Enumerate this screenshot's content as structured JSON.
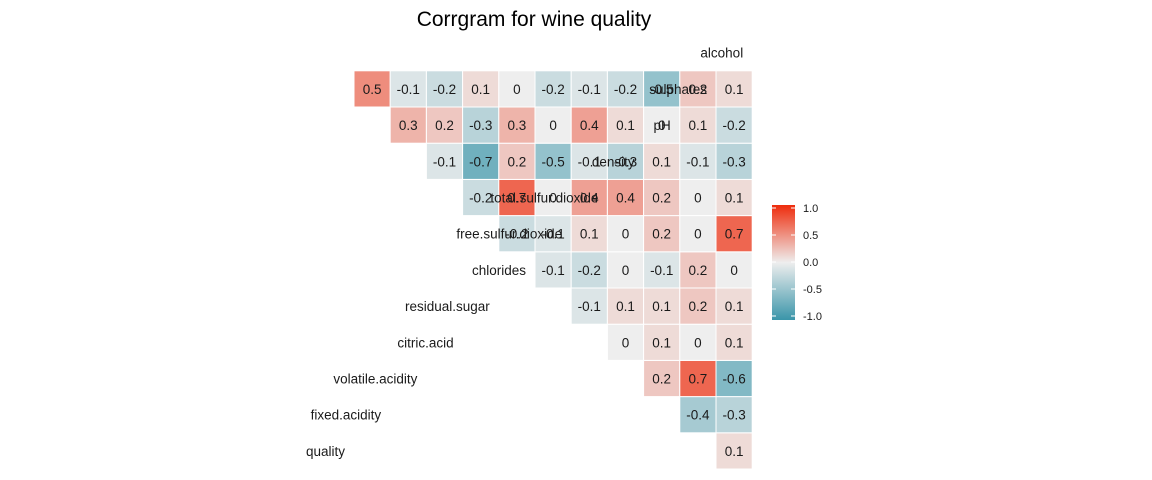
{
  "chart_data": {
    "type": "heatmap",
    "title": "Corrgram for wine quality",
    "variables": [
      "quality",
      "fixed.acidity",
      "volatile.acidity",
      "citric.acid",
      "residual.sugar",
      "chlorides",
      "free.sulfur.dioxide",
      "total.sulfur.dioxide",
      "density",
      "pH",
      "sulphates",
      "alcohol"
    ],
    "correlations": [
      [
        0.1
      ],
      [
        -0.4,
        -0.3
      ],
      [
        0.2,
        0.7,
        -0.6
      ],
      [
        0,
        0.1,
        0,
        0.1
      ],
      [
        -0.1,
        0.1,
        0.1,
        0.2,
        0.1
      ],
      [
        -0.1,
        -0.2,
        0,
        -0.1,
        0.2,
        0
      ],
      [
        -0.2,
        -0.1,
        0.1,
        0,
        0.2,
        0,
        0.7
      ],
      [
        -0.2,
        0.7,
        0,
        0.4,
        0.4,
        0.2,
        0,
        0.1
      ],
      [
        -0.1,
        -0.7,
        0.2,
        -0.5,
        -0.1,
        -0.3,
        0.1,
        -0.1,
        -0.3
      ],
      [
        0.3,
        0.2,
        -0.3,
        0.3,
        0,
        0.4,
        0.1,
        0,
        0.1,
        -0.2
      ],
      [
        0.5,
        -0.1,
        -0.2,
        0.1,
        0,
        -0.2,
        -0.1,
        -0.2,
        -0.5,
        0.2,
        0.1
      ]
    ],
    "legend": {
      "ticks": [
        "1.0",
        "0.5",
        "0.0",
        "-0.5",
        "-1.0"
      ],
      "tick_values": [
        1.0,
        0.5,
        0.0,
        -0.5,
        -1.0
      ],
      "range": [
        -1,
        1
      ],
      "low_color": "#3A95A9",
      "mid_color": "#EEEEEE",
      "high_color": "#EE2C0C",
      "placement": "right"
    },
    "grid": false
  }
}
